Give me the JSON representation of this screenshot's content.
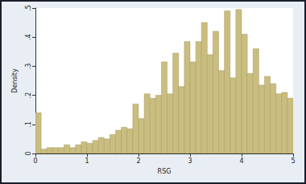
{
  "chart_data": {
    "type": "histogram",
    "x_label": "RSG",
    "y_label": "Density",
    "bins": [
      0,
      0.1111,
      0.2222,
      0.3333,
      0.4444,
      0.5556,
      0.6667,
      0.7778,
      0.8889,
      1,
      1.1111,
      1.2222,
      1.3333,
      1.4444,
      1.5556,
      1.6667,
      1.7778,
      1.8889,
      2,
      2.1111,
      2.2222,
      2.3333,
      2.4444,
      2.5556,
      2.6667,
      2.7778,
      2.8889,
      3,
      3.1111,
      3.2222,
      3.3333,
      3.4444,
      3.5556,
      3.6667,
      3.7778,
      3.8889,
      4,
      4.1111,
      4.2222,
      4.3333,
      4.4444,
      4.5556,
      4.6667,
      4.7778,
      4.8889,
      5
    ],
    "values": [
      0.14,
      0.015,
      0.02,
      0.02,
      0.02,
      0.03,
      0.02,
      0.03,
      0.04,
      0.035,
      0.045,
      0.055,
      0.05,
      0.065,
      0.08,
      0.09,
      0.085,
      0.17,
      0.12,
      0.205,
      0.19,
      0.2,
      0.315,
      0.205,
      0.345,
      0.23,
      0.385,
      0.315,
      0.385,
      0.45,
      0.34,
      0.42,
      0.285,
      0.49,
      0.26,
      0.495,
      0.41,
      0.275,
      0.36,
      0.235,
      0.265,
      0.24,
      0.205,
      0.21,
      0.19
    ],
    "color": "#c9bd80",
    "xlim": [
      0,
      5
    ],
    "xticks": [
      0,
      1,
      2,
      3,
      4,
      5
    ],
    "ylim": [
      0,
      0.5
    ],
    "yticks": [
      0,
      {
        "value": 0.1,
        "label": ".1"
      },
      {
        "value": 0.2,
        "label": ".2"
      },
      {
        "value": 0.3,
        "label": ".3"
      },
      {
        "value": 0.4,
        "label": ".4"
      },
      {
        "value": 0.5,
        "label": ".5"
      }
    ],
    "grid": false
  }
}
